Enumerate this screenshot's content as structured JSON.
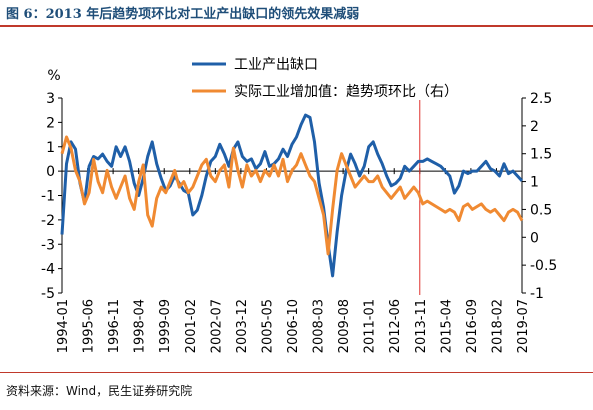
{
  "header": {
    "title": "图 6：2013 年后趋势项环比对工业产出缺口的领先效果减弱"
  },
  "footer": {
    "source": "资料来源：Wind，民生证券研究院"
  },
  "chart_data": {
    "type": "line",
    "left_unit": "%",
    "x_tick_labels": [
      "1994-01",
      "1995-06",
      "1996-11",
      "1998-04",
      "1999-09",
      "2001-02",
      "2002-07",
      "2003-12",
      "2005-05",
      "2006-10",
      "2008-03",
      "2009-08",
      "2011-01",
      "2012-06",
      "2013-11",
      "2015-04",
      "2016-09",
      "2018-02",
      "2019-07"
    ],
    "ylim_left": [
      -5,
      3
    ],
    "yticks_left": [
      "3",
      "2",
      "1",
      "0",
      "-1",
      "-2",
      "-3",
      "-4",
      "-5"
    ],
    "ylim_right": [
      -1,
      2.5
    ],
    "yticks_right": [
      "2.5",
      "2",
      "1.5",
      "1",
      "0.5",
      "0",
      "-0.5",
      "-1"
    ],
    "marker_x": "2013-11",
    "colors": {
      "left_series": "#1f5fa8",
      "right_series": "#f08a32",
      "marker": "#e0302c",
      "axis": "#000000"
    },
    "legend_position": "top-center",
    "series": [
      {
        "name": "工业产出缺口",
        "axis": "left",
        "color": "#1f5fa8",
        "points": [
          [
            "1994-01",
            -2.6
          ],
          [
            "1994-04",
            0.3
          ],
          [
            "1994-07",
            1.2
          ],
          [
            "1994-10",
            0.9
          ],
          [
            "1995-01",
            -0.5
          ],
          [
            "1995-04",
            -1.3
          ],
          [
            "1995-07",
            0.2
          ],
          [
            "1995-10",
            0.6
          ],
          [
            "1996-01",
            0.5
          ],
          [
            "1996-04",
            0.7
          ],
          [
            "1996-07",
            0.4
          ],
          [
            "1996-10",
            0.2
          ],
          [
            "1997-01",
            1.0
          ],
          [
            "1997-04",
            0.6
          ],
          [
            "1997-07",
            1.0
          ],
          [
            "1997-10",
            0.4
          ],
          [
            "1998-01",
            -0.5
          ],
          [
            "1998-04",
            -1.0
          ],
          [
            "1998-07",
            -0.3
          ],
          [
            "1998-10",
            0.6
          ],
          [
            "1999-01",
            1.2
          ],
          [
            "1999-04",
            0.3
          ],
          [
            "1999-07",
            -0.3
          ],
          [
            "1999-10",
            -0.8
          ],
          [
            "2000-01",
            -0.6
          ],
          [
            "2000-04",
            -0.2
          ],
          [
            "2000-07",
            -0.5
          ],
          [
            "2000-10",
            -0.8
          ],
          [
            "2001-01",
            -0.9
          ],
          [
            "2001-04",
            -1.8
          ],
          [
            "2001-07",
            -1.6
          ],
          [
            "2001-10",
            -1.0
          ],
          [
            "2002-01",
            -0.2
          ],
          [
            "2002-04",
            0.4
          ],
          [
            "2002-07",
            0.6
          ],
          [
            "2002-10",
            1.1
          ],
          [
            "2003-01",
            0.7
          ],
          [
            "2003-04",
            0.2
          ],
          [
            "2003-07",
            0.9
          ],
          [
            "2003-10",
            1.2
          ],
          [
            "2004-01",
            0.6
          ],
          [
            "2004-04",
            0.4
          ],
          [
            "2004-07",
            0.5
          ],
          [
            "2004-10",
            0.1
          ],
          [
            "2005-01",
            0.3
          ],
          [
            "2005-04",
            0.8
          ],
          [
            "2005-07",
            0.2
          ],
          [
            "2005-10",
            0.3
          ],
          [
            "2006-01",
            0.5
          ],
          [
            "2006-04",
            0.9
          ],
          [
            "2006-07",
            0.6
          ],
          [
            "2006-10",
            1.1
          ],
          [
            "2007-01",
            1.4
          ],
          [
            "2007-04",
            1.9
          ],
          [
            "2007-07",
            2.3
          ],
          [
            "2007-10",
            2.2
          ],
          [
            "2008-01",
            1.2
          ],
          [
            "2008-04",
            -0.5
          ],
          [
            "2008-07",
            -1.5
          ],
          [
            "2008-10",
            -3.0
          ],
          [
            "2009-01",
            -4.3
          ],
          [
            "2009-04",
            -2.5
          ],
          [
            "2009-07",
            -1.0
          ],
          [
            "2009-10",
            0.0
          ],
          [
            "2010-01",
            0.7
          ],
          [
            "2010-04",
            0.3
          ],
          [
            "2010-07",
            -0.2
          ],
          [
            "2010-10",
            0.2
          ],
          [
            "2011-01",
            1.0
          ],
          [
            "2011-04",
            1.2
          ],
          [
            "2011-07",
            0.7
          ],
          [
            "2011-10",
            0.3
          ],
          [
            "2012-01",
            -0.2
          ],
          [
            "2012-04",
            -0.6
          ],
          [
            "2012-07",
            -0.5
          ],
          [
            "2012-10",
            -0.3
          ],
          [
            "2013-01",
            0.2
          ],
          [
            "2013-04",
            0.0
          ],
          [
            "2013-07",
            0.2
          ],
          [
            "2013-10",
            0.4
          ],
          [
            "2014-01",
            0.4
          ],
          [
            "2014-04",
            0.5
          ],
          [
            "2014-07",
            0.4
          ],
          [
            "2014-10",
            0.3
          ],
          [
            "2015-01",
            0.2
          ],
          [
            "2015-04",
            0.0
          ],
          [
            "2015-07",
            -0.2
          ],
          [
            "2015-10",
            -0.9
          ],
          [
            "2016-01",
            -0.6
          ],
          [
            "2016-04",
            0.0
          ],
          [
            "2016-07",
            -0.1
          ],
          [
            "2016-10",
            0.0
          ],
          [
            "2017-01",
            0.0
          ],
          [
            "2017-04",
            0.2
          ],
          [
            "2017-07",
            0.4
          ],
          [
            "2017-10",
            0.1
          ],
          [
            "2018-01",
            0.0
          ],
          [
            "2018-04",
            -0.2
          ],
          [
            "2018-07",
            0.3
          ],
          [
            "2018-10",
            -0.1
          ],
          [
            "2019-01",
            0.0
          ],
          [
            "2019-04",
            -0.2
          ],
          [
            "2019-07",
            -0.4
          ]
        ]
      },
      {
        "name": "实际工业增加值：趋势项环比（右）",
        "axis": "right",
        "color": "#f08a32",
        "points": [
          [
            "1994-01",
            1.5
          ],
          [
            "1994-04",
            1.8
          ],
          [
            "1994-07",
            1.6
          ],
          [
            "1994-10",
            1.2
          ],
          [
            "1995-01",
            1.0
          ],
          [
            "1995-04",
            0.6
          ],
          [
            "1995-07",
            0.8
          ],
          [
            "1995-10",
            1.4
          ],
          [
            "1996-01",
            1.0
          ],
          [
            "1996-04",
            0.8
          ],
          [
            "1996-07",
            1.2
          ],
          [
            "1996-10",
            0.9
          ],
          [
            "1997-01",
            0.7
          ],
          [
            "1997-04",
            0.9
          ],
          [
            "1997-07",
            1.1
          ],
          [
            "1997-10",
            0.7
          ],
          [
            "1998-01",
            0.5
          ],
          [
            "1998-04",
            1.0
          ],
          [
            "1998-07",
            1.3
          ],
          [
            "1998-10",
            0.4
          ],
          [
            "1999-01",
            0.2
          ],
          [
            "1999-04",
            0.7
          ],
          [
            "1999-07",
            0.9
          ],
          [
            "1999-10",
            0.8
          ],
          [
            "2000-01",
            1.0
          ],
          [
            "2000-04",
            1.2
          ],
          [
            "2000-07",
            0.9
          ],
          [
            "2000-10",
            1.0
          ],
          [
            "2001-01",
            0.8
          ],
          [
            "2001-04",
            0.9
          ],
          [
            "2001-07",
            1.1
          ],
          [
            "2001-10",
            1.3
          ],
          [
            "2002-01",
            1.4
          ],
          [
            "2002-04",
            1.1
          ],
          [
            "2002-07",
            1.0
          ],
          [
            "2002-10",
            1.2
          ],
          [
            "2003-01",
            1.3
          ],
          [
            "2003-04",
            0.9
          ],
          [
            "2003-07",
            1.6
          ],
          [
            "2003-10",
            1.2
          ],
          [
            "2004-01",
            0.9
          ],
          [
            "2004-04",
            1.3
          ],
          [
            "2004-07",
            1.1
          ],
          [
            "2004-10",
            1.2
          ],
          [
            "2005-01",
            1.0
          ],
          [
            "2005-04",
            1.2
          ],
          [
            "2005-07",
            1.1
          ],
          [
            "2005-10",
            1.3
          ],
          [
            "2006-01",
            1.1
          ],
          [
            "2006-04",
            1.4
          ],
          [
            "2006-07",
            1.0
          ],
          [
            "2006-10",
            1.2
          ],
          [
            "2007-01",
            1.3
          ],
          [
            "2007-04",
            1.5
          ],
          [
            "2007-07",
            1.3
          ],
          [
            "2007-10",
            1.1
          ],
          [
            "2008-01",
            1.0
          ],
          [
            "2008-04",
            0.7
          ],
          [
            "2008-07",
            0.4
          ],
          [
            "2008-10",
            -0.3
          ],
          [
            "2009-01",
            0.5
          ],
          [
            "2009-04",
            1.2
          ],
          [
            "2009-07",
            1.5
          ],
          [
            "2009-10",
            1.3
          ],
          [
            "2010-01",
            1.1
          ],
          [
            "2010-04",
            0.9
          ],
          [
            "2010-07",
            1.0
          ],
          [
            "2010-10",
            1.1
          ],
          [
            "2011-01",
            1.0
          ],
          [
            "2011-04",
            1.0
          ],
          [
            "2011-07",
            1.1
          ],
          [
            "2011-10",
            0.9
          ],
          [
            "2012-01",
            0.8
          ],
          [
            "2012-04",
            0.7
          ],
          [
            "2012-07",
            0.8
          ],
          [
            "2012-10",
            0.9
          ],
          [
            "2013-01",
            0.7
          ],
          [
            "2013-04",
            0.8
          ],
          [
            "2013-07",
            0.9
          ],
          [
            "2013-10",
            0.8
          ],
          [
            "2014-01",
            0.6
          ],
          [
            "2014-04",
            0.65
          ],
          [
            "2014-07",
            0.6
          ],
          [
            "2014-10",
            0.55
          ],
          [
            "2015-01",
            0.5
          ],
          [
            "2015-04",
            0.45
          ],
          [
            "2015-07",
            0.5
          ],
          [
            "2015-10",
            0.45
          ],
          [
            "2016-01",
            0.3
          ],
          [
            "2016-04",
            0.55
          ],
          [
            "2016-07",
            0.6
          ],
          [
            "2016-10",
            0.5
          ],
          [
            "2017-01",
            0.55
          ],
          [
            "2017-04",
            0.6
          ],
          [
            "2017-07",
            0.5
          ],
          [
            "2017-10",
            0.45
          ],
          [
            "2018-01",
            0.5
          ],
          [
            "2018-04",
            0.4
          ],
          [
            "2018-07",
            0.3
          ],
          [
            "2018-10",
            0.45
          ],
          [
            "2019-01",
            0.5
          ],
          [
            "2019-04",
            0.45
          ],
          [
            "2019-07",
            0.3
          ]
        ]
      }
    ]
  }
}
